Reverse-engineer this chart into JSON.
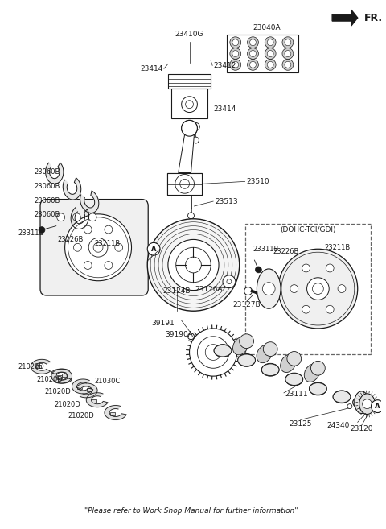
{
  "background_color": "#ffffff",
  "line_color": "#1a1a1a",
  "footer": "\"Please refer to Work Shop Manual for further information\"",
  "fr_label": "FR.",
  "dohc_label": "(DOHC-TCI/GDI)",
  "figsize": [
    4.8,
    6.57
  ],
  "dpi": 100
}
